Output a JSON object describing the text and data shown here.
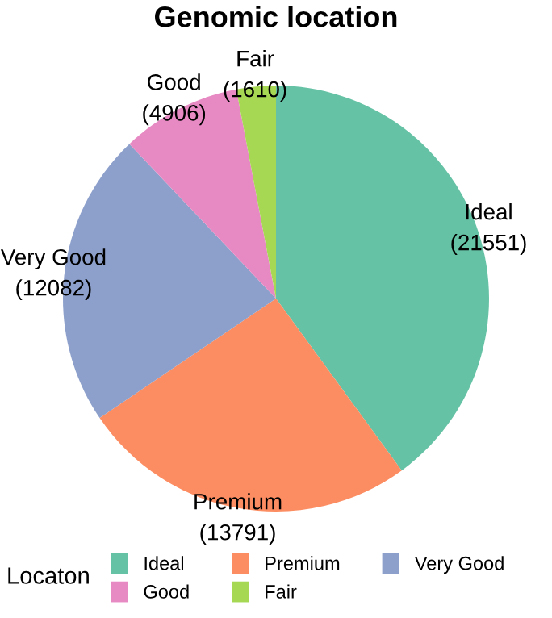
{
  "chart_data": {
    "type": "pie",
    "title": "Genomic location",
    "legend_title": "Locaton",
    "legend": "bottom",
    "categories": [
      "Ideal",
      "Premium",
      "Very Good",
      "Good",
      "Fair"
    ],
    "values": [
      21551,
      13791,
      12082,
      4906,
      1610
    ],
    "value_labels": [
      "(21551)",
      "(13791)",
      "(12082)",
      "(4906)",
      "(1610)"
    ],
    "colors": [
      "#66c2a5",
      "#fc8d62",
      "#8da0cb",
      "#e78ac3",
      "#a6d854"
    ]
  }
}
